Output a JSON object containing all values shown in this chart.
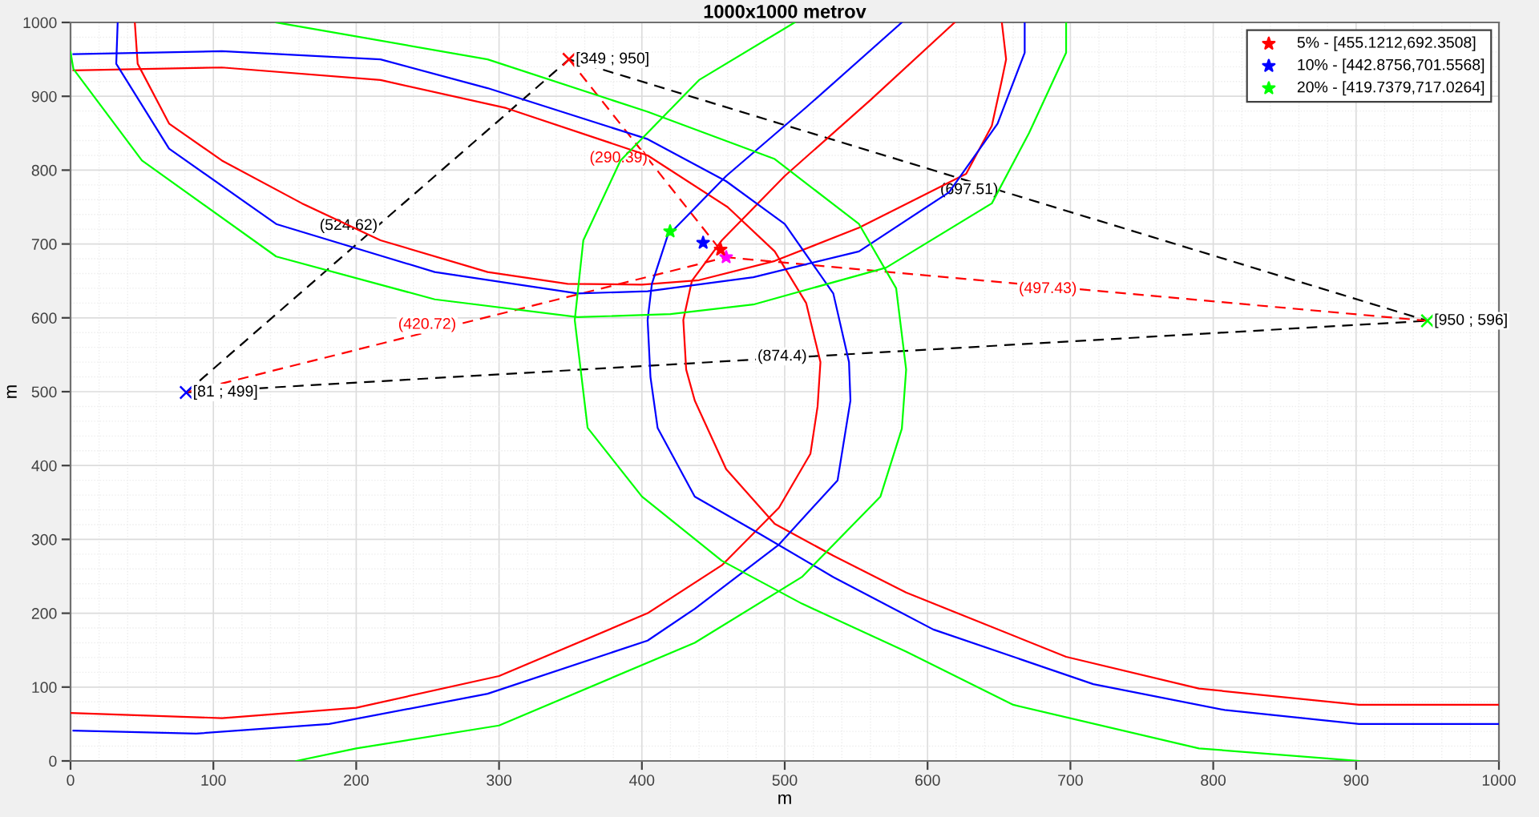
{
  "chart_data": {
    "type": "line",
    "title": "1000x1000 metrov",
    "xlabel": "m",
    "ylabel": "m",
    "xlim": [
      0,
      1000
    ],
    "ylim": [
      0,
      1000
    ],
    "xticks": [
      0,
      100,
      200,
      300,
      400,
      500,
      600,
      700,
      800,
      900,
      1000
    ],
    "yticks": [
      0,
      100,
      200,
      300,
      400,
      500,
      600,
      700,
      800,
      900,
      1000
    ],
    "grid": true,
    "legend": "top right",
    "series": [
      {
        "color": "#ff0000",
        "x": [
          45,
          47,
          69,
          106,
          162,
          217,
          292,
          348,
          400,
          440,
          493,
          552,
          627,
          645,
          652,
          655,
          652
        ],
        "values": [
          1000,
          944,
          863,
          813,
          755,
          705,
          662,
          646,
          645,
          651,
          677,
          722,
          795,
          860,
          922,
          950,
          1000
        ]
      },
      {
        "color": "#ff0000",
        "x": [
          2,
          106,
          217,
          305,
          404,
          460,
          493,
          515,
          525,
          523,
          518,
          496,
          456,
          404,
          300,
          200,
          106,
          0
        ],
        "values": [
          935,
          939,
          922,
          884,
          820,
          750,
          690,
          620,
          540,
          480,
          416,
          343,
          265,
          200,
          115,
          72,
          58,
          65
        ]
      },
      {
        "color": "#ff0000",
        "x": [
          619,
          560,
          500,
          456,
          435,
          429,
          431,
          437,
          459,
          493,
          534,
          585,
          697,
          790,
          902,
          1000
        ],
        "values": [
          1000,
          895,
          792,
          705,
          650,
          597,
          530,
          488,
          395,
          321,
          278,
          228,
          141,
          98,
          76,
          76
        ]
      },
      {
        "color": "#0000ff",
        "x": [
          33,
          32,
          69,
          144,
          255,
          355,
          404,
          478,
          552,
          615,
          649,
          668,
          668
        ],
        "values": [
          1000,
          944,
          829,
          727,
          662,
          633,
          636,
          655,
          690,
          770,
          863,
          959,
          1000
        ]
      },
      {
        "color": "#0000ff",
        "x": [
          2,
          106,
          217,
          292,
          404,
          459,
          500,
          534,
          545,
          546,
          537,
          496,
          437,
          404,
          292,
          181,
          88,
          2
        ],
        "values": [
          957,
          961,
          950,
          911,
          842,
          785,
          727,
          633,
          540,
          488,
          380,
          293,
          206,
          163,
          91,
          50,
          37,
          41
        ]
      },
      {
        "color": "#0000ff",
        "x": [
          582,
          515,
          459,
          418,
          407,
          404,
          406,
          411,
          437,
          482,
          534,
          604,
          716,
          808,
          902,
          1000
        ],
        "values": [
          1000,
          885,
          792,
          711,
          646,
          597,
          520,
          451,
          358,
          308,
          249,
          178,
          104,
          69,
          50,
          50
        ]
      },
      {
        "color": "#00ff00",
        "x": [
          0,
          2,
          50,
          144,
          255,
          355,
          420,
          478,
          571,
          645,
          671,
          697,
          697
        ],
        "values": [
          960,
          937,
          813,
          683,
          625,
          601,
          605,
          618,
          668,
          755,
          850,
          959,
          1000
        ]
      },
      {
        "color": "#00ff00",
        "x": [
          144,
          292,
          404,
          493,
          552,
          578,
          585,
          582,
          567,
          512,
          437,
          300,
          200,
          158
        ],
        "values": [
          1000,
          950,
          879,
          815,
          727,
          640,
          530,
          450,
          358,
          249,
          160,
          48,
          17,
          0
        ]
      },
      {
        "color": "#00ff00",
        "x": [
          507,
          440,
          385,
          359,
          353,
          362,
          400,
          456,
          512,
          585,
          660,
          790,
          902
        ],
        "values": [
          1000,
          922,
          813,
          705,
          597,
          451,
          358,
          271,
          213,
          148,
          76,
          17,
          0
        ]
      },
      {
        "name": "(524.62)",
        "color": "#000000",
        "line_style": "dashed",
        "x": [
          81,
          349
        ],
        "values": [
          499,
          950
        ]
      },
      {
        "name": "(697.51)",
        "color": "#000000",
        "line_style": "dashed",
        "x": [
          349,
          950
        ],
        "values": [
          950,
          596
        ]
      },
      {
        "name": "(874.4)",
        "color": "#000000",
        "line_style": "dashed",
        "x": [
          81,
          950
        ],
        "values": [
          499,
          596
        ]
      },
      {
        "name": "(420.72)",
        "color": "#ff0000",
        "line_style": "dashed",
        "x": [
          81,
          459
        ],
        "values": [
          499,
          682
        ]
      },
      {
        "name": "(290.39)",
        "color": "#ff0000",
        "line_style": "dashed",
        "x": [
          349,
          459
        ],
        "values": [
          950,
          682
        ]
      },
      {
        "name": "(497.43)",
        "color": "#ff0000",
        "line_style": "dashed",
        "x": [
          950,
          459
        ],
        "values": [
          596,
          682
        ]
      },
      {
        "type": "scatter",
        "color": "#0000ff",
        "marker": "cross",
        "x": [
          81
        ],
        "values": [
          499
        ]
      },
      {
        "type": "scatter",
        "color": "#ff0000",
        "marker": "cross",
        "x": [
          349
        ],
        "values": [
          950
        ]
      },
      {
        "type": "scatter",
        "color": "#00ff00",
        "marker": "cross",
        "x": [
          950
        ],
        "values": [
          596
        ]
      },
      {
        "type": "scatter",
        "color": "#ff00ff",
        "marker": "star",
        "x": [
          459
        ],
        "values": [
          682
        ]
      },
      {
        "type": "scatter",
        "name": "5% - [455.1212,692.3508]",
        "color": "#ff0000",
        "marker": "star",
        "x": [
          455.1212
        ],
        "values": [
          692.3508
        ]
      },
      {
        "type": "scatter",
        "name": "10% - [442.8756,701.5568]",
        "color": "#0000ff",
        "marker": "star",
        "x": [
          442.8756
        ],
        "values": [
          701.5568
        ]
      },
      {
        "type": "scatter",
        "name": "20% - [419.7379,717.0264]",
        "color": "#00ff00",
        "marker": "star",
        "x": [
          419.7379
        ],
        "values": [
          717.0264
        ]
      }
    ],
    "annotations": [
      {
        "text": "[81 ; 499]",
        "x": 81,
        "y": 499
      },
      {
        "text": "[349 ; 950]",
        "x": 349,
        "y": 950
      },
      {
        "text": "[950 ; 596]",
        "x": 950,
        "y": 596
      }
    ]
  }
}
